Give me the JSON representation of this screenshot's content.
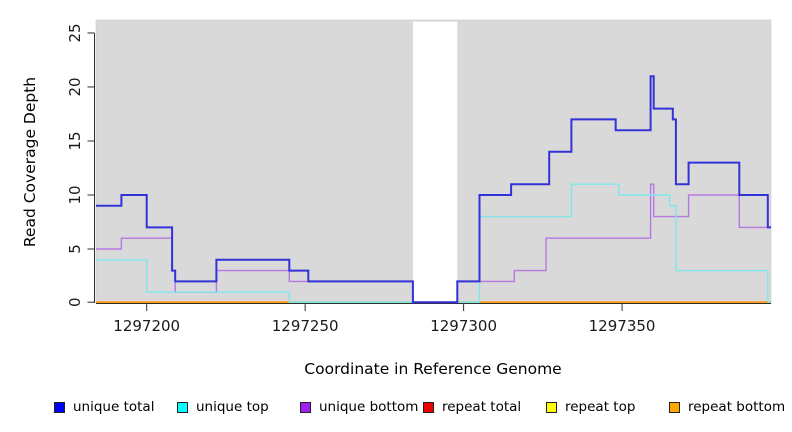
{
  "figure": {
    "x_axis": {
      "label": "Coordinate in Reference Genome",
      "ticks": [
        1297200,
        1297250,
        1297300,
        1297350
      ]
    },
    "y_axis": {
      "label": "Read Coverage Depth",
      "ticks": [
        0,
        5,
        10,
        15,
        20,
        25
      ]
    }
  },
  "legend": {
    "items": [
      {
        "label": "unique total",
        "color": "#0000ff"
      },
      {
        "label": "unique top",
        "color": "#00ffff"
      },
      {
        "label": "unique bottom",
        "color": "#a020f0"
      },
      {
        "label": "repeat total",
        "color": "#ee0000"
      },
      {
        "label": "repeat top",
        "color": "#ffff00"
      },
      {
        "label": "repeat bottom",
        "color": "#ffa500"
      }
    ]
  },
  "chart_data": {
    "type": "line",
    "step": true,
    "title": "",
    "xlabel": "Coordinate in Reference Genome",
    "ylabel": "Read Coverage Depth",
    "xlim": [
      1297184,
      1297397
    ],
    "ylim": [
      0,
      26.2
    ],
    "grid": false,
    "legend_position": "bottom",
    "panel_background": "#d9d9d9",
    "no_data_gap": {
      "from": 1297284,
      "to": 1297298,
      "color": "#ffffff"
    },
    "series": [
      {
        "name": "unique total",
        "line_color": "#3232d8",
        "width": 2,
        "points": [
          [
            1297184,
            9
          ],
          [
            1297192,
            10
          ],
          [
            1297200,
            7
          ],
          [
            1297208,
            3
          ],
          [
            1297209,
            2
          ],
          [
            1297222,
            4
          ],
          [
            1297245,
            3
          ],
          [
            1297251,
            2
          ],
          [
            1297284,
            0
          ],
          [
            1297298,
            2
          ],
          [
            1297305,
            10
          ],
          [
            1297315,
            11
          ],
          [
            1297327,
            14
          ],
          [
            1297334,
            17
          ],
          [
            1297348,
            16
          ],
          [
            1297359,
            21
          ],
          [
            1297360,
            18
          ],
          [
            1297366,
            17
          ],
          [
            1297367,
            11
          ],
          [
            1297371,
            13
          ],
          [
            1297387,
            10
          ],
          [
            1297396,
            7
          ]
        ]
      },
      {
        "name": "unique top",
        "line_color": "#7fe7eb",
        "width": 1.4,
        "points": [
          [
            1297184,
            4
          ],
          [
            1297200,
            1
          ],
          [
            1297245,
            0
          ],
          [
            1297305,
            8
          ],
          [
            1297334,
            11
          ],
          [
            1297349,
            10
          ],
          [
            1297365,
            9
          ],
          [
            1297367,
            3
          ],
          [
            1297396,
            0
          ]
        ]
      },
      {
        "name": "unique bottom",
        "line_color": "#b678e0",
        "width": 1.4,
        "points": [
          [
            1297184,
            5
          ],
          [
            1297192,
            6
          ],
          [
            1297208,
            3
          ],
          [
            1297209,
            1
          ],
          [
            1297222,
            3
          ],
          [
            1297245,
            2
          ],
          [
            1297284,
            0
          ],
          [
            1297298,
            2
          ],
          [
            1297316,
            3
          ],
          [
            1297326,
            6
          ],
          [
            1297359,
            11
          ],
          [
            1297360,
            8
          ],
          [
            1297371,
            10
          ],
          [
            1297387,
            7
          ]
        ]
      },
      {
        "name": "repeat total",
        "line_color": "#ee0000",
        "width": 1.5,
        "points": [
          [
            1297184,
            0
          ]
        ]
      },
      {
        "name": "repeat top",
        "line_color": "#ffff00",
        "width": 1.5,
        "points": [
          [
            1297184,
            0
          ]
        ]
      },
      {
        "name": "repeat bottom",
        "line_color": "#ff9814",
        "width": 1.6,
        "points": [
          [
            1297184,
            0
          ]
        ]
      }
    ],
    "zero_line_segments": [
      {
        "from": 1297184,
        "to": 1297245,
        "color": "#ff9814"
      },
      {
        "from": 1297245,
        "to": 1297284,
        "color": "#7cc87c"
      },
      {
        "from": 1297298,
        "to": 1297305,
        "color": "#7cc87c"
      },
      {
        "from": 1297305,
        "to": 1297397,
        "color": "#ff9814"
      }
    ]
  }
}
